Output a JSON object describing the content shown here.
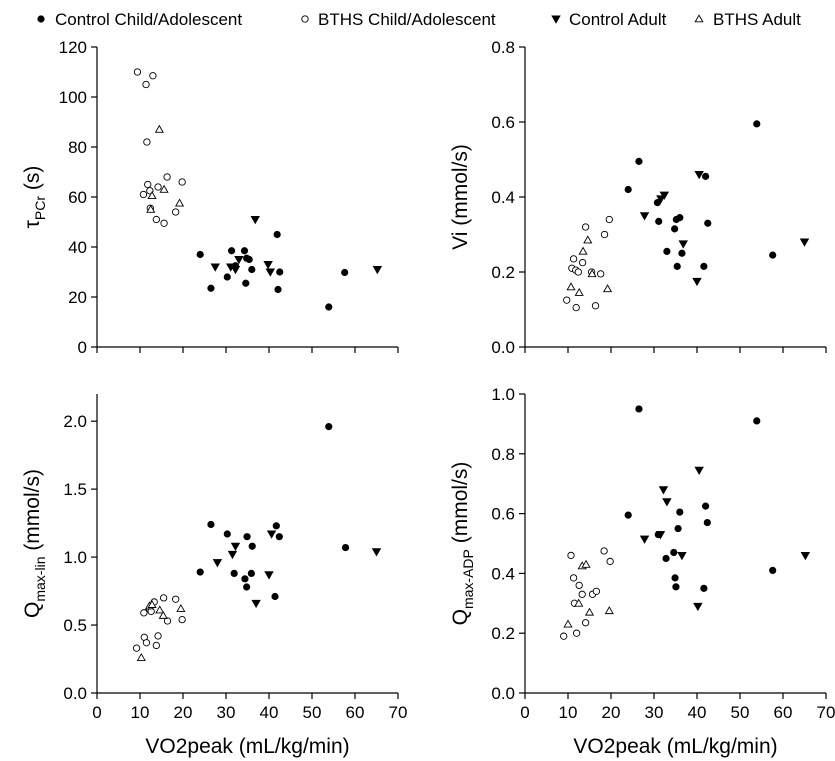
{
  "legend": [
    {
      "label": "Control Child/Adolescent",
      "marker": "circle-filled"
    },
    {
      "label": "BTHS Child/Adolescent",
      "marker": "circle-open"
    },
    {
      "label": "Control Adult",
      "marker": "triangle-down-filled"
    },
    {
      "label": "BTHS Adult",
      "marker": "triangle-up-open"
    }
  ],
  "chart_data": [
    {
      "type": "scatter",
      "panel": "top-left",
      "ylabel": {
        "main": "τ",
        "sub": "PCr",
        "suffix": " (s)"
      },
      "xlabel": "",
      "xlim": [
        0,
        70
      ],
      "ylim": [
        0,
        120
      ],
      "xticks": [
        0,
        10,
        20,
        30,
        40,
        50,
        60,
        70
      ],
      "yticks": [
        "0",
        "20",
        "40",
        "60",
        "80",
        "100",
        "120"
      ],
      "show_x_tick_labels": false,
      "series": [
        {
          "name": "Control Child/Adolescent",
          "marker": "circle-filled",
          "x": [
            24.0,
            26.5,
            30.3,
            31.3,
            32.2,
            34.3,
            34.6,
            34.8,
            35.4,
            36.0,
            41.9,
            42.1,
            42.5,
            53.9,
            57.6
          ],
          "y": [
            37,
            23.5,
            28,
            38.5,
            32.5,
            38.5,
            25.5,
            35.5,
            35,
            31,
            45,
            23,
            30,
            16,
            29.8
          ]
        },
        {
          "name": "BTHS Child/Adolescent",
          "marker": "circle-open",
          "x": [
            9.4,
            11.4,
            11.8,
            12.3,
            12.4,
            13.0,
            13.8,
            15.6,
            16.3,
            18.3,
            19.8,
            10.8,
            11.6,
            14.2
          ],
          "y": [
            110,
            105,
            65,
            62.5,
            55.5,
            108.5,
            51,
            49.5,
            68,
            54,
            66,
            61,
            82,
            64
          ]
        },
        {
          "name": "Control Adult",
          "marker": "triangle-down-filled",
          "x": [
            27.5,
            31.1,
            32.2,
            33.0,
            36.8,
            39.8,
            40.3,
            65.2
          ],
          "y": [
            32,
            32,
            31,
            35,
            51,
            33,
            30,
            31
          ]
        },
        {
          "name": "BTHS Adult",
          "marker": "triangle-up-open",
          "x": [
            12.5,
            12.8,
            14.5,
            15.6,
            19.2
          ],
          "y": [
            55,
            60.5,
            87,
            63,
            57.5
          ]
        }
      ]
    },
    {
      "type": "scatter",
      "panel": "top-right",
      "ylabel": {
        "main": "Vi",
        "sub": "",
        "suffix": " (mmol/s)"
      },
      "xlabel": "",
      "xlim": [
        0,
        70
      ],
      "ylim": [
        0,
        0.8
      ],
      "xticks": [
        0,
        10,
        20,
        30,
        40,
        50,
        60,
        70
      ],
      "yticks": [
        "0.0",
        "0.2",
        "0.4",
        "0.6",
        "0.8"
      ],
      "show_x_tick_labels": false,
      "series": [
        {
          "name": "Control Child/Adolescent",
          "marker": "circle-filled",
          "x": [
            24.0,
            26.5,
            30.8,
            31.1,
            33.0,
            34.8,
            35.2,
            35.4,
            36.0,
            36.5,
            41.6,
            42.0,
            42.5,
            53.9,
            57.6
          ],
          "y": [
            0.42,
            0.495,
            0.385,
            0.335,
            0.255,
            0.315,
            0.34,
            0.215,
            0.345,
            0.25,
            0.215,
            0.455,
            0.33,
            0.595,
            0.245
          ]
        },
        {
          "name": "BTHS Child/Adolescent",
          "marker": "circle-open",
          "x": [
            9.7,
            10.9,
            11.3,
            11.8,
            11.9,
            12.4,
            13.4,
            14.1,
            15.5,
            16.4,
            17.6,
            18.5,
            19.6
          ],
          "y": [
            0.125,
            0.21,
            0.235,
            0.205,
            0.105,
            0.2,
            0.225,
            0.32,
            0.2,
            0.11,
            0.195,
            0.3,
            0.34
          ]
        },
        {
          "name": "Control Adult",
          "marker": "triangle-down-filled",
          "x": [
            27.8,
            31.6,
            32.4,
            36.8,
            40.0,
            40.5,
            65.0
          ],
          "y": [
            0.35,
            0.395,
            0.405,
            0.275,
            0.175,
            0.46,
            0.28
          ]
        },
        {
          "name": "BTHS Adult",
          "marker": "triangle-up-open",
          "x": [
            10.7,
            12.6,
            13.5,
            14.6,
            15.6,
            19.2
          ],
          "y": [
            0.16,
            0.145,
            0.255,
            0.285,
            0.195,
            0.155
          ]
        }
      ]
    },
    {
      "type": "scatter",
      "panel": "bottom-left",
      "ylabel": {
        "main": "Q",
        "sub": "max-lin",
        "suffix": " (mmol/s)"
      },
      "xlabel": "VO2peak (mL/kg/min)",
      "xlim": [
        0,
        70
      ],
      "ylim": [
        0,
        2.2
      ],
      "xticks": [
        0,
        10,
        20,
        30,
        40,
        50,
        60,
        70
      ],
      "yticks": [
        "0.0",
        "0.5",
        "1.0",
        "1.5",
        "2.0"
      ],
      "show_x_tick_labels": true,
      "series": [
        {
          "name": "Control Child/Adolescent",
          "marker": "circle-filled",
          "x": [
            24.0,
            26.5,
            30.3,
            31.9,
            34.4,
            34.8,
            34.9,
            35.9,
            36.1,
            41.4,
            41.7,
            42.4,
            53.9,
            57.8
          ],
          "y": [
            0.89,
            1.24,
            1.17,
            0.88,
            0.84,
            0.78,
            1.15,
            0.88,
            1.08,
            0.71,
            1.23,
            1.15,
            1.96,
            1.07
          ]
        },
        {
          "name": "BTHS Child/Adolescent",
          "marker": "circle-open",
          "x": [
            9.2,
            11.0,
            11.5,
            12.2,
            12.6,
            13.3,
            14.2,
            15.5,
            16.4,
            18.3,
            19.8,
            10.9,
            13.8
          ],
          "y": [
            0.33,
            0.41,
            0.37,
            0.62,
            0.6,
            0.67,
            0.42,
            0.7,
            0.53,
            0.69,
            0.54,
            0.59,
            0.35
          ]
        },
        {
          "name": "Control Adult",
          "marker": "triangle-down-filled",
          "x": [
            28.0,
            31.5,
            32.2,
            37.0,
            40.0,
            40.6,
            65.0
          ],
          "y": [
            0.96,
            1.02,
            1.08,
            0.66,
            0.87,
            1.17,
            1.04
          ]
        },
        {
          "name": "BTHS Adult",
          "marker": "triangle-up-open",
          "x": [
            10.3,
            12.2,
            12.8,
            14.6,
            15.4,
            19.5
          ],
          "y": [
            0.26,
            0.64,
            0.65,
            0.61,
            0.57,
            0.62
          ]
        }
      ]
    },
    {
      "type": "scatter",
      "panel": "bottom-right",
      "ylabel": {
        "main": "Q",
        "sub": "max-ADP",
        "suffix": " (mmol/s)"
      },
      "xlabel": "VO2peak (mL/kg/min)",
      "xlim": [
        0,
        70
      ],
      "ylim": [
        0,
        1.0
      ],
      "xticks": [
        0,
        10,
        20,
        30,
        40,
        50,
        60,
        70
      ],
      "yticks": [
        "0.0",
        "0.2",
        "0.4",
        "0.6",
        "0.8",
        "1.0"
      ],
      "show_x_tick_labels": true,
      "series": [
        {
          "name": "Control Child/Adolescent",
          "marker": "circle-filled",
          "x": [
            24.0,
            26.5,
            31.0,
            32.8,
            34.6,
            34.9,
            35.1,
            35.6,
            36.0,
            41.6,
            42.0,
            42.4,
            53.9,
            57.6
          ],
          "y": [
            0.595,
            0.95,
            0.53,
            0.45,
            0.47,
            0.385,
            0.355,
            0.55,
            0.605,
            0.35,
            0.625,
            0.57,
            0.91,
            0.41
          ]
        },
        {
          "name": "BTHS Child/Adolescent",
          "marker": "circle-open",
          "x": [
            9.0,
            10.7,
            11.3,
            11.5,
            12.0,
            12.6,
            13.3,
            14.1,
            15.7,
            16.6,
            18.4,
            19.8
          ],
          "y": [
            0.19,
            0.46,
            0.385,
            0.3,
            0.2,
            0.36,
            0.33,
            0.235,
            0.33,
            0.34,
            0.475,
            0.44
          ]
        },
        {
          "name": "Control Adult",
          "marker": "triangle-down-filled",
          "x": [
            27.8,
            31.5,
            32.2,
            33.0,
            36.5,
            40.2,
            40.5,
            65.2
          ],
          "y": [
            0.515,
            0.53,
            0.68,
            0.64,
            0.46,
            0.29,
            0.745,
            0.46
          ]
        },
        {
          "name": "BTHS Adult",
          "marker": "triangle-up-open",
          "x": [
            10.0,
            12.5,
            13.3,
            14.2,
            15.0,
            19.6
          ],
          "y": [
            0.23,
            0.3,
            0.425,
            0.43,
            0.27,
            0.275
          ]
        }
      ]
    }
  ]
}
